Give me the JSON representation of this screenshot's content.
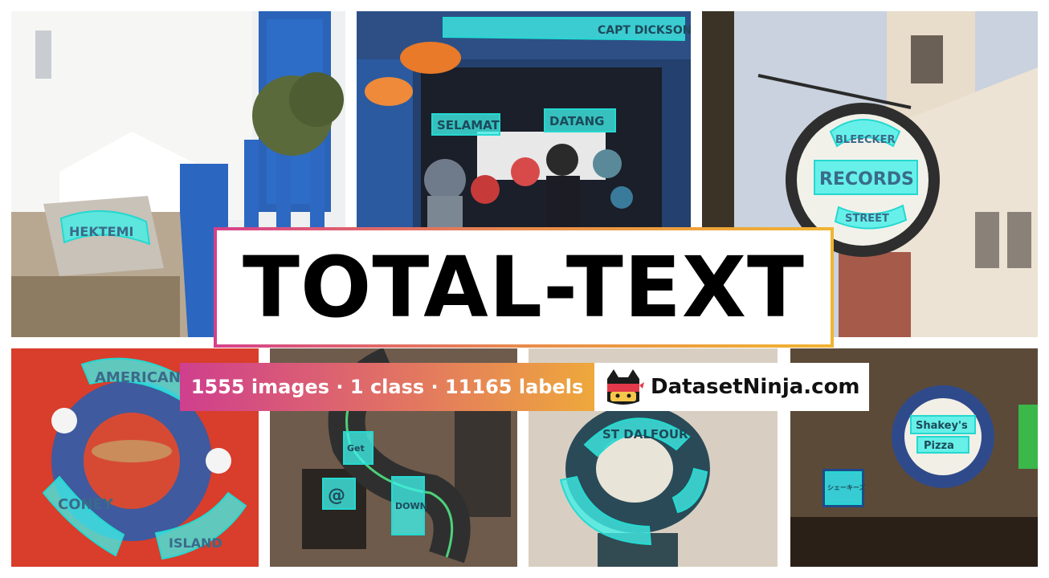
{
  "title": "TOTAL-TEXT",
  "stats": "1555 images · 1 class · 11165 labels",
  "brand": "DatasetNinja.com",
  "brand_logo_icon": "ninja-cat-icon",
  "colors": {
    "annotation": "#3ff0e8",
    "gradient_start": "#d6408b",
    "gradient_end": "#f1b431"
  },
  "samples": {
    "greek_wall": [
      "HEKTEMI"
    ],
    "restaurant": [
      "CAPT DICKSON",
      "SELAMAT",
      "DATANG"
    ],
    "records_sign": [
      "BLEECKER",
      "RECORDS",
      "STREET"
    ],
    "coney": [
      "AMERICAN",
      "CONEY",
      "ISLAND"
    ],
    "neon": [
      "@",
      "Get",
      "DOWN"
    ],
    "can_lid": [
      "ST DALFOUR"
    ],
    "shakeys": [
      "Shakey's",
      "Pizza",
      "シェーキーズ"
    ]
  }
}
